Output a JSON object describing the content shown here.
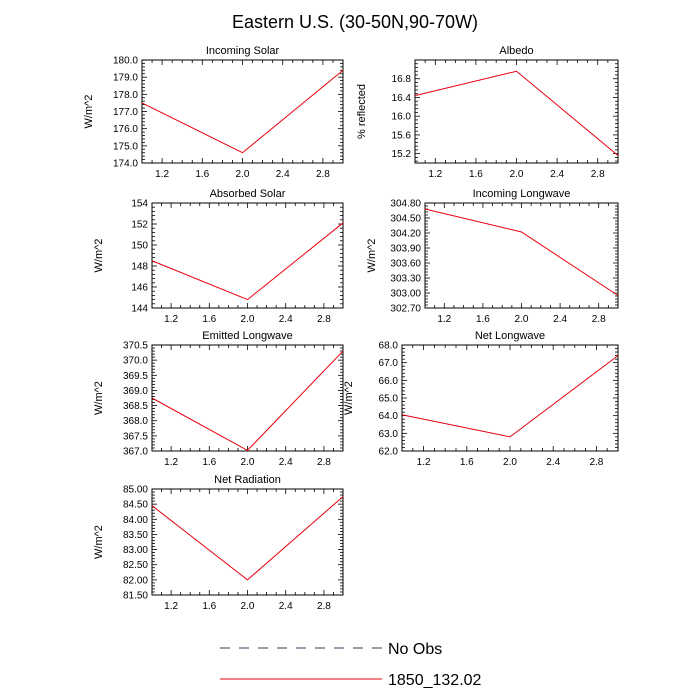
{
  "figure": {
    "title": "Eastern U.S. (30-50N,90-70W)"
  },
  "legend": {
    "items": [
      {
        "label": "No Obs",
        "color": "#3a3a55",
        "dashed": true
      },
      {
        "label": "1850_132.02",
        "color": "#e8000b",
        "dashed": false
      }
    ]
  },
  "chart_data": [
    {
      "type": "line",
      "title": "Incoming Solar",
      "ylabel": "W/m^2",
      "xlim": [
        1,
        3
      ],
      "ylim": [
        174.0,
        180.0
      ],
      "xticks": [
        "1.2",
        "1.6",
        "2.0",
        "2.4",
        "2.8"
      ],
      "yticks": [
        "174.0",
        "175.0",
        "176.0",
        "177.0",
        "178.0",
        "179.0",
        "180.0"
      ],
      "series": [
        {
          "name": "1850_132.02",
          "color": "#e8000b",
          "x": [
            1,
            2,
            3
          ],
          "y": [
            177.5,
            174.6,
            179.4
          ]
        }
      ]
    },
    {
      "type": "line",
      "title": "Albedo",
      "ylabel": "% reflected",
      "xlim": [
        1,
        3
      ],
      "ylim": [
        15.0,
        17.2
      ],
      "xticks": [
        "1.2",
        "1.6",
        "2.0",
        "2.4",
        "2.8"
      ],
      "yticks": [
        "15.2",
        "15.6",
        "16.0",
        "16.4",
        "16.8"
      ],
      "series": [
        {
          "name": "1850_132.02",
          "color": "#e8000b",
          "x": [
            1,
            2,
            3
          ],
          "y": [
            16.44,
            16.96,
            15.16
          ]
        }
      ]
    },
    {
      "type": "line",
      "title": "Absorbed Solar",
      "ylabel": "W/m^2",
      "xlim": [
        1,
        3
      ],
      "ylim": [
        144,
        154
      ],
      "xticks": [
        "1.2",
        "1.6",
        "2.0",
        "2.4",
        "2.8"
      ],
      "yticks": [
        "144",
        "146",
        "148",
        "150",
        "152",
        "154"
      ],
      "series": [
        {
          "name": "1850_132.02",
          "color": "#e8000b",
          "x": [
            1,
            2,
            3
          ],
          "y": [
            148.5,
            144.8,
            152.1
          ]
        }
      ]
    },
    {
      "type": "line",
      "title": "Incoming Longwave",
      "ylabel": "W/m^2",
      "xlim": [
        1,
        3
      ],
      "ylim": [
        302.7,
        304.8
      ],
      "xticks": [
        "1.2",
        "1.6",
        "2.0",
        "2.4",
        "2.8"
      ],
      "yticks": [
        "302.70",
        "303.00",
        "303.30",
        "303.60",
        "303.90",
        "304.20",
        "304.50",
        "304.80"
      ],
      "series": [
        {
          "name": "1850_132.02",
          "color": "#e8000b",
          "x": [
            1,
            2,
            3
          ],
          "y": [
            304.68,
            304.22,
            302.95
          ]
        }
      ]
    },
    {
      "type": "line",
      "title": "Emitted Longwave",
      "ylabel": "W/m^2",
      "xlim": [
        1,
        3
      ],
      "ylim": [
        367.0,
        370.5
      ],
      "xticks": [
        "1.2",
        "1.6",
        "2.0",
        "2.4",
        "2.8"
      ],
      "yticks": [
        "367.0",
        "367.5",
        "368.0",
        "368.5",
        "369.0",
        "369.5",
        "370.0",
        "370.5"
      ],
      "series": [
        {
          "name": "1850_132.02",
          "color": "#e8000b",
          "x": [
            1,
            2,
            3
          ],
          "y": [
            368.75,
            367.02,
            370.3
          ]
        }
      ]
    },
    {
      "type": "line",
      "title": "Net Longwave",
      "ylabel": "W/m^2",
      "xlim": [
        1,
        3
      ],
      "ylim": [
        62.0,
        68.0
      ],
      "xticks": [
        "1.2",
        "1.6",
        "2.0",
        "2.4",
        "2.8"
      ],
      "yticks": [
        "62.0",
        "63.0",
        "64.0",
        "65.0",
        "66.0",
        "67.0",
        "68.0"
      ],
      "series": [
        {
          "name": "1850_132.02",
          "color": "#e8000b",
          "x": [
            1,
            2,
            3
          ],
          "y": [
            64.05,
            62.8,
            67.4
          ]
        }
      ]
    },
    {
      "type": "line",
      "title": "Net Radiation",
      "ylabel": "W/m^2",
      "xlim": [
        1,
        3
      ],
      "ylim": [
        81.5,
        85.0
      ],
      "xticks": [
        "1.2",
        "1.6",
        "2.0",
        "2.4",
        "2.8"
      ],
      "yticks": [
        "81.50",
        "82.00",
        "82.50",
        "83.00",
        "83.50",
        "84.00",
        "84.50",
        "85.00"
      ],
      "series": [
        {
          "name": "1850_132.02",
          "color": "#e8000b",
          "x": [
            1,
            2,
            3
          ],
          "y": [
            84.45,
            82.0,
            84.75
          ]
        }
      ]
    }
  ]
}
